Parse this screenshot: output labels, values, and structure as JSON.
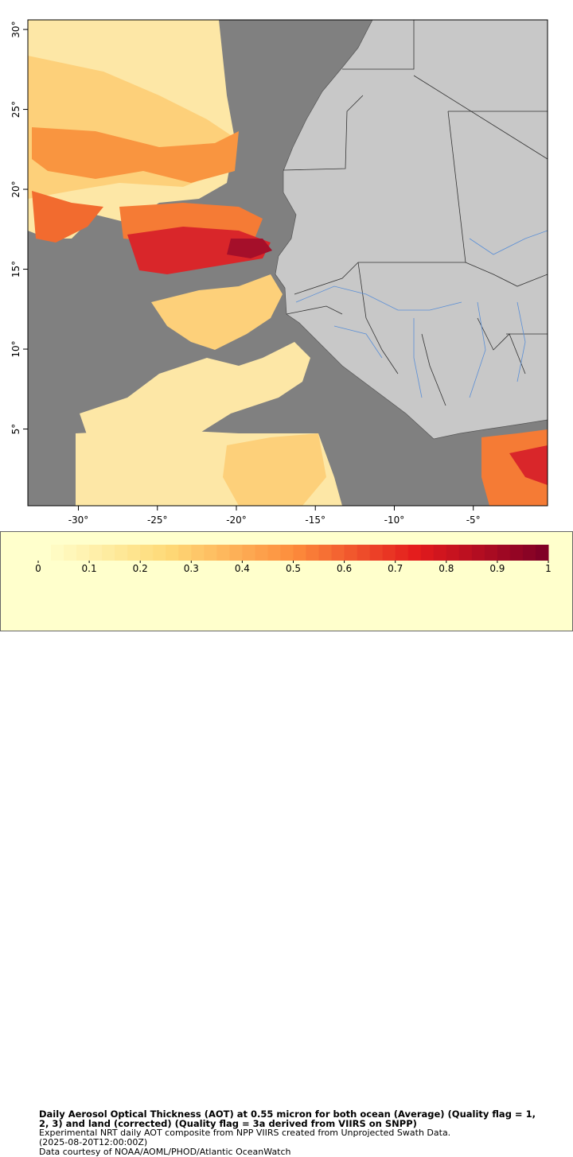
{
  "map": {
    "xlim": [
      -33.2,
      -0.3
    ],
    "ylim": [
      0.2,
      30.6
    ],
    "lon_ticks": [
      {
        "value": -30,
        "label": "-30°"
      },
      {
        "value": -25,
        "label": "-25°"
      },
      {
        "value": -20,
        "label": "-20°"
      },
      {
        "value": -15,
        "label": "-15°"
      },
      {
        "value": -10,
        "label": "-10°"
      },
      {
        "value": -5,
        "label": "-5°"
      }
    ],
    "lat_ticks": [
      {
        "value": 5,
        "label": "5°"
      },
      {
        "value": 10,
        "label": "10°"
      },
      {
        "value": 15,
        "label": "15°"
      },
      {
        "value": 20,
        "label": "20°"
      },
      {
        "value": 25,
        "label": "25°"
      },
      {
        "value": 30,
        "label": "30°"
      }
    ]
  },
  "colorbar": {
    "range": [
      0,
      1
    ],
    "ticks": [
      0,
      0.1,
      0.2,
      0.3,
      0.4,
      0.5,
      0.6,
      0.7,
      0.8,
      0.9,
      1
    ]
  },
  "caption": {
    "title_lines": [
      "Daily Aerosol Optical Thickness (AOT) at 0.55 micron for both ocean (Average) (Quality flag = 1,",
      "2, 3) and land (corrected) (Quality flag = 3a derived from VIIRS on SNPP)"
    ],
    "lines": [
      "Experimental NRT daily AOT composite from NPP VIIRS created from Unprojected Swath Data.",
      "(2025-08-20T12:00:00Z)",
      "Data courtesy of NOAA/AOML/PHOD/Atlantic OceanWatch"
    ]
  }
}
